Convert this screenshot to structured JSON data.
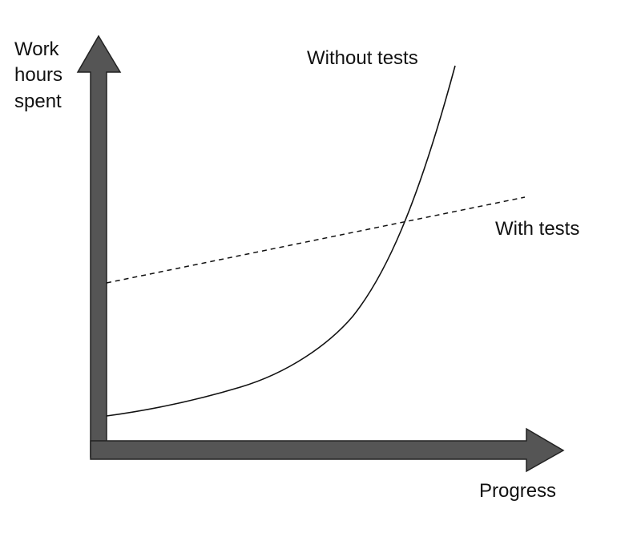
{
  "y_axis_label": [
    "Work",
    "hours",
    "spent"
  ],
  "x_axis_label": "Progress",
  "curves": [
    {
      "label": "Without tests"
    },
    {
      "label": "With tests"
    }
  ]
}
